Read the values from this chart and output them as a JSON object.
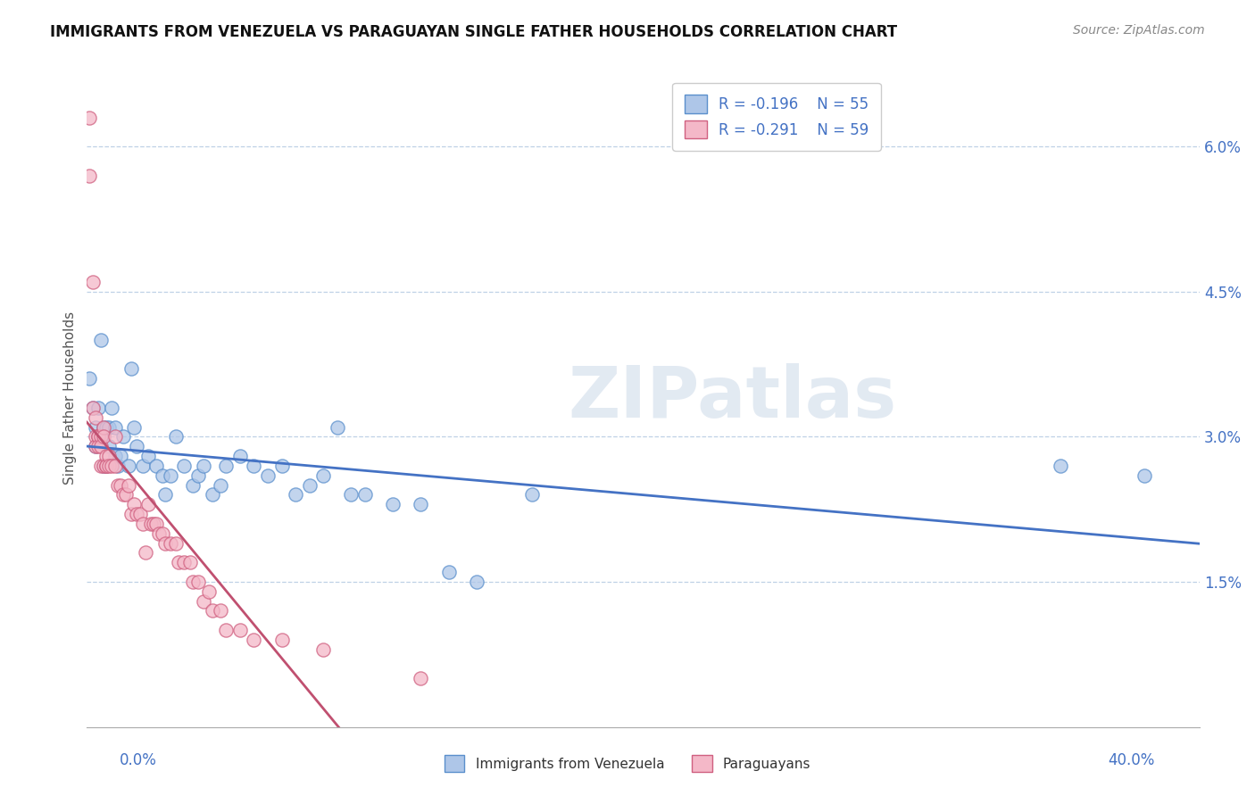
{
  "title": "IMMIGRANTS FROM VENEZUELA VS PARAGUAYAN SINGLE FATHER HOUSEHOLDS CORRELATION CHART",
  "source": "Source: ZipAtlas.com",
  "ylabel": "Single Father Households",
  "xmin": 0.0,
  "xmax": 0.4,
  "ymin": 0.0,
  "ymax": 0.068,
  "yticks": [
    0.015,
    0.03,
    0.045,
    0.06
  ],
  "ytick_labels": [
    "1.5%",
    "3.0%",
    "4.5%",
    "6.0%"
  ],
  "legend1_r": "R = -0.196",
  "legend1_n": "N = 55",
  "legend2_r": "R = -0.291",
  "legend2_n": "N = 59",
  "watermark": "ZIPatlas",
  "blue_color": "#AEC6E8",
  "pink_color": "#F4B8C8",
  "blue_edge_color": "#5A8FCC",
  "pink_edge_color": "#D06080",
  "blue_line_color": "#4472C4",
  "pink_line_color": "#C05070",
  "blue_scatter": [
    [
      0.001,
      0.036
    ],
    [
      0.002,
      0.033
    ],
    [
      0.003,
      0.031
    ],
    [
      0.003,
      0.029
    ],
    [
      0.004,
      0.03
    ],
    [
      0.004,
      0.033
    ],
    [
      0.005,
      0.04
    ],
    [
      0.005,
      0.03
    ],
    [
      0.006,
      0.031
    ],
    [
      0.006,
      0.027
    ],
    [
      0.007,
      0.027
    ],
    [
      0.007,
      0.031
    ],
    [
      0.008,
      0.029
    ],
    [
      0.008,
      0.031
    ],
    [
      0.009,
      0.033
    ],
    [
      0.01,
      0.031
    ],
    [
      0.01,
      0.028
    ],
    [
      0.011,
      0.027
    ],
    [
      0.012,
      0.028
    ],
    [
      0.013,
      0.03
    ],
    [
      0.015,
      0.027
    ],
    [
      0.016,
      0.037
    ],
    [
      0.017,
      0.031
    ],
    [
      0.018,
      0.029
    ],
    [
      0.02,
      0.027
    ],
    [
      0.022,
      0.028
    ],
    [
      0.025,
      0.027
    ],
    [
      0.027,
      0.026
    ],
    [
      0.028,
      0.024
    ],
    [
      0.03,
      0.026
    ],
    [
      0.032,
      0.03
    ],
    [
      0.035,
      0.027
    ],
    [
      0.038,
      0.025
    ],
    [
      0.04,
      0.026
    ],
    [
      0.042,
      0.027
    ],
    [
      0.045,
      0.024
    ],
    [
      0.048,
      0.025
    ],
    [
      0.05,
      0.027
    ],
    [
      0.055,
      0.028
    ],
    [
      0.06,
      0.027
    ],
    [
      0.065,
      0.026
    ],
    [
      0.07,
      0.027
    ],
    [
      0.075,
      0.024
    ],
    [
      0.08,
      0.025
    ],
    [
      0.085,
      0.026
    ],
    [
      0.09,
      0.031
    ],
    [
      0.095,
      0.024
    ],
    [
      0.1,
      0.024
    ],
    [
      0.11,
      0.023
    ],
    [
      0.12,
      0.023
    ],
    [
      0.13,
      0.016
    ],
    [
      0.14,
      0.015
    ],
    [
      0.16,
      0.024
    ],
    [
      0.35,
      0.027
    ],
    [
      0.38,
      0.026
    ]
  ],
  "pink_scatter": [
    [
      0.001,
      0.063
    ],
    [
      0.001,
      0.057
    ],
    [
      0.002,
      0.046
    ],
    [
      0.002,
      0.033
    ],
    [
      0.003,
      0.03
    ],
    [
      0.003,
      0.032
    ],
    [
      0.003,
      0.029
    ],
    [
      0.004,
      0.03
    ],
    [
      0.004,
      0.03
    ],
    [
      0.004,
      0.029
    ],
    [
      0.005,
      0.03
    ],
    [
      0.005,
      0.029
    ],
    [
      0.005,
      0.027
    ],
    [
      0.006,
      0.031
    ],
    [
      0.006,
      0.03
    ],
    [
      0.006,
      0.027
    ],
    [
      0.007,
      0.028
    ],
    [
      0.007,
      0.027
    ],
    [
      0.007,
      0.027
    ],
    [
      0.008,
      0.028
    ],
    [
      0.008,
      0.027
    ],
    [
      0.009,
      0.027
    ],
    [
      0.01,
      0.03
    ],
    [
      0.01,
      0.027
    ],
    [
      0.011,
      0.025
    ],
    [
      0.012,
      0.025
    ],
    [
      0.013,
      0.024
    ],
    [
      0.014,
      0.024
    ],
    [
      0.015,
      0.025
    ],
    [
      0.016,
      0.022
    ],
    [
      0.017,
      0.023
    ],
    [
      0.018,
      0.022
    ],
    [
      0.019,
      0.022
    ],
    [
      0.02,
      0.021
    ],
    [
      0.021,
      0.018
    ],
    [
      0.022,
      0.023
    ],
    [
      0.023,
      0.021
    ],
    [
      0.024,
      0.021
    ],
    [
      0.025,
      0.021
    ],
    [
      0.026,
      0.02
    ],
    [
      0.027,
      0.02
    ],
    [
      0.028,
      0.019
    ],
    [
      0.03,
      0.019
    ],
    [
      0.032,
      0.019
    ],
    [
      0.033,
      0.017
    ],
    [
      0.035,
      0.017
    ],
    [
      0.037,
      0.017
    ],
    [
      0.038,
      0.015
    ],
    [
      0.04,
      0.015
    ],
    [
      0.042,
      0.013
    ],
    [
      0.044,
      0.014
    ],
    [
      0.045,
      0.012
    ],
    [
      0.048,
      0.012
    ],
    [
      0.05,
      0.01
    ],
    [
      0.055,
      0.01
    ],
    [
      0.06,
      0.009
    ],
    [
      0.07,
      0.009
    ],
    [
      0.085,
      0.008
    ],
    [
      0.12,
      0.005
    ]
  ],
  "pink_trend_xmax": 0.26
}
